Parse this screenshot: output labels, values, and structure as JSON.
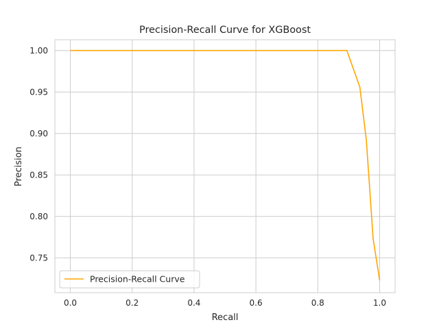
{
  "chart_data": {
    "type": "line",
    "title": "Precision-Recall Curve for XGBoost",
    "xlabel": "Recall",
    "ylabel": "Precision",
    "xlim": [
      -0.05,
      1.05
    ],
    "ylim": [
      0.708,
      1.013
    ],
    "xticks": [
      0.0,
      0.2,
      0.4,
      0.6,
      0.8,
      1.0
    ],
    "xtick_labels": [
      "0.0",
      "0.2",
      "0.4",
      "0.6",
      "0.8",
      "1.0"
    ],
    "yticks": [
      0.75,
      0.8,
      0.85,
      0.9,
      0.95,
      1.0
    ],
    "ytick_labels": [
      "0.75",
      "0.80",
      "0.85",
      "0.90",
      "0.95",
      "1.00"
    ],
    "grid": true,
    "legend_position": "lower-left",
    "series": [
      {
        "name": "Precision-Recall Curve",
        "color": "#ffa500",
        "x": [
          0.0,
          0.894,
          0.936,
          0.957,
          0.979,
          1.0
        ],
        "y": [
          1.0,
          1.0,
          0.956,
          0.892,
          0.773,
          0.723
        ]
      }
    ]
  }
}
